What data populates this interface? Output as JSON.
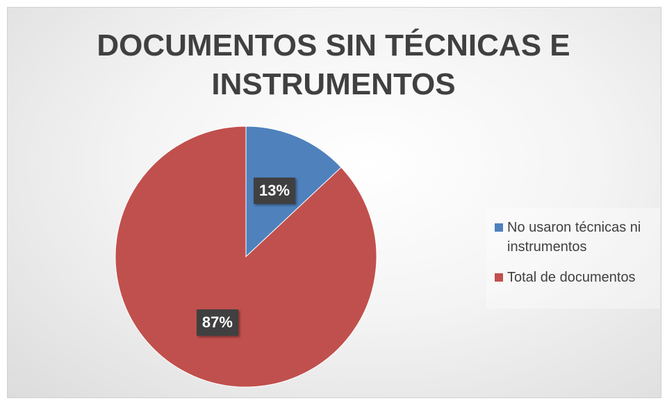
{
  "chart_data": {
    "type": "pie",
    "title": "DOCUMENTOS SIN TÉCNICAS E INSTRUMENTOS",
    "categories": [
      "No usaron técnicas ni instrumentos",
      "Total de documentos"
    ],
    "values": [
      13,
      87
    ],
    "value_labels": [
      "13%",
      "87%"
    ],
    "colors": [
      "#4f81bd",
      "#c0504d"
    ],
    "legend": "right"
  }
}
